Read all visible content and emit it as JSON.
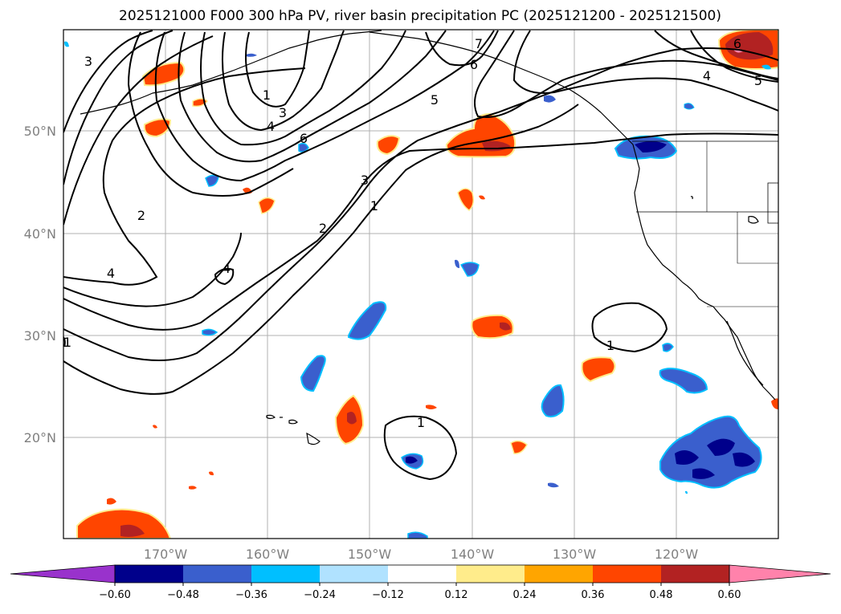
{
  "title": "2025121000 F000 300 hPa PV, river basin precipitation PC (2025121200 - 2025121500)",
  "lat_labels": [
    "50°N",
    "40°N",
    "30°N",
    "20°N"
  ],
  "lon_labels": [
    "170°W",
    "160°W",
    "150°W",
    "140°W",
    "130°W",
    "120°W"
  ],
  "colorbar": {
    "ticks": [
      "−0.60",
      "−0.48",
      "−0.36",
      "−0.24",
      "−0.12",
      "0.12",
      "0.24",
      "0.36",
      "0.48",
      "0.60"
    ],
    "colors": [
      "#9932cc",
      "#00008b",
      "#3a5fcd",
      "#00bfff",
      "#b0e2ff",
      "#ffffff",
      "#ffec8b",
      "#ffa500",
      "#ff4500",
      "#b22222",
      "#ff82ab"
    ]
  },
  "contour_labels": [
    "3",
    "1",
    "3",
    "4",
    "6",
    "7",
    "6",
    "5",
    "4",
    "5",
    "6",
    "3",
    "1",
    "2",
    "2",
    "4",
    "4",
    "1",
    "1",
    "1"
  ]
}
